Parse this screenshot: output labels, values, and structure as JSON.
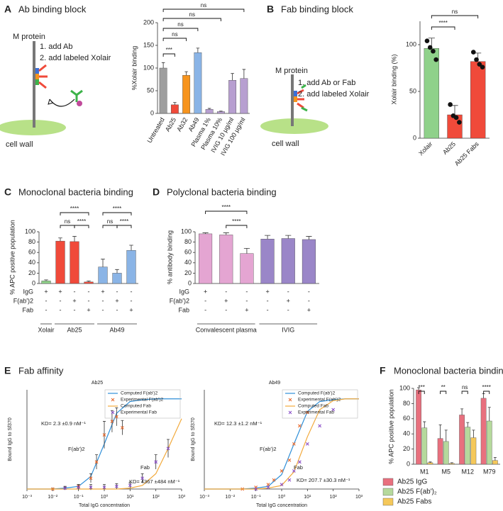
{
  "chart_data": [
    {
      "type": "bar",
      "panel": "A",
      "title": "Ab binding block",
      "ylabel": "%Xolair binding",
      "annotations": [
        "M protein",
        "1. add Ab",
        "2. add labeled Xolair",
        "cell wall"
      ],
      "categories": [
        "Untreated",
        "Ab25",
        "Ab32",
        "Ab49",
        "Plasma 1%",
        "Plasma 10%",
        "IVIG 10 µg/ml",
        "IVIG 100 µg/ml"
      ],
      "values": [
        100,
        19,
        84,
        134,
        9,
        4,
        73,
        77
      ],
      "errors": [
        12,
        5,
        8,
        10,
        2,
        1,
        15,
        20
      ],
      "colors": [
        "#9e9e9e",
        "#f04a3a",
        "#f7941d",
        "#8ab4e6",
        "#b79fd0",
        "#b79fd0",
        "#b79fd0",
        "#b79fd0"
      ],
      "ylim": [
        0,
        200
      ],
      "yticks": [
        0,
        50,
        100,
        150,
        200
      ],
      "significance": [
        "***",
        "ns",
        "ns",
        "ns",
        "ns"
      ]
    },
    {
      "type": "bar",
      "panel": "B",
      "title": "Fab binding block",
      "ylabel": "Xolair binding (%)",
      "annotations": [
        "M protein",
        "1. add Ab or Fab",
        "2. add labeled Xolair",
        "cell wall"
      ],
      "categories": [
        "Xolair",
        "Ab25",
        "Ab25 Fabs"
      ],
      "values": [
        96,
        25,
        82
      ],
      "errors": [
        11,
        10,
        9
      ],
      "points": [
        [
          104,
          97,
          93,
          84
        ],
        [
          36,
          24,
          22,
          17
        ],
        [
          92,
          84,
          79,
          76
        ]
      ],
      "colors": [
        "#8fd18a",
        "#f04a3a",
        "#f04a3a"
      ],
      "ylim": [
        0,
        125
      ],
      "yticks": [
        0,
        50,
        100
      ],
      "significance": [
        "****",
        "ns"
      ]
    },
    {
      "type": "bar",
      "panel": "C",
      "title": "Monoclonal bacteria binding",
      "ylabel": "% APC positive population",
      "values": [
        5,
        82,
        81,
        3,
        32,
        20,
        64
      ],
      "errors": [
        2,
        6,
        10,
        2,
        15,
        7,
        10
      ],
      "colors": [
        "#8fd18a",
        "#f04a3a",
        "#f04a3a",
        "#f04a3a",
        "#8ab4e6",
        "#8ab4e6",
        "#8ab4e6"
      ],
      "ylim": [
        0,
        100
      ],
      "yticks": [
        0,
        20,
        40,
        60,
        80,
        100
      ],
      "row_labels": [
        "IgG",
        "F(ab')2",
        "Fab"
      ],
      "signs": [
        [
          "+",
          "+",
          "-",
          "-",
          "+",
          "-",
          "-"
        ],
        [
          "-",
          "-",
          "+",
          "-",
          "-",
          "+",
          "-"
        ],
        [
          "-",
          "-",
          "-",
          "+",
          "-",
          "-",
          "+"
        ]
      ],
      "groups": [
        "Xolair",
        "Ab25",
        "Ab49"
      ],
      "significance": [
        "****",
        "ns",
        "****",
        "****",
        "ns",
        "****"
      ]
    },
    {
      "type": "bar",
      "panel": "D",
      "title": "Polyclonal bacteria binding",
      "ylabel": "% antibody binding",
      "values": [
        96,
        94,
        58,
        86,
        87,
        85
      ],
      "errors": [
        2,
        4,
        10,
        7,
        6,
        6
      ],
      "colors": [
        "#e4a5d2",
        "#e4a5d2",
        "#e4a5d2",
        "#9a86c8",
        "#9a86c8",
        "#9a86c8"
      ],
      "ylim": [
        0,
        100
      ],
      "yticks": [
        0,
        20,
        40,
        60,
        80,
        100
      ],
      "row_labels": [
        "IgG",
        "F(ab')2",
        "Fab"
      ],
      "signs": [
        [
          "+",
          "-",
          "-",
          "+",
          "-",
          "-"
        ],
        [
          "-",
          "+",
          "-",
          "-",
          "+",
          "-"
        ],
        [
          "-",
          "-",
          "+",
          "-",
          "-",
          "+"
        ]
      ],
      "groups": [
        "Convalescent plasma",
        "IVIG"
      ],
      "significance": [
        "****",
        "****"
      ]
    },
    {
      "type": "line",
      "panel": "E",
      "title": "Fab affinity",
      "subtitle": "Ab25",
      "xlabel": "Total IgG concentration",
      "ylabel": "Bound IgG to Sf370",
      "xscale": "log",
      "xlim": [
        0.001,
        1000
      ],
      "xticks": [
        {
          "value": 0.001,
          "label": "10⁻³"
        },
        {
          "value": 0.01,
          "label": "10⁻²"
        },
        {
          "value": 0.1,
          "label": "10⁻¹"
        },
        {
          "value": 1,
          "label": "10⁰"
        },
        {
          "value": 10,
          "label": "10¹"
        },
        {
          "value": 100,
          "label": "10²"
        },
        {
          "value": 1000,
          "label": "10³"
        }
      ],
      "ylim": [
        0,
        1.1
      ],
      "annotations": [
        "KD= 2.3 ±0.9 nM⁻¹",
        "F(ab')2",
        "Fab",
        "KD= 4367 ±484 nM⁻¹"
      ],
      "series": [
        {
          "name": "Computed F(ab')2",
          "color": "#2f8fd8",
          "style": "line",
          "x": [
            0.001,
            0.003,
            0.01,
            0.03,
            0.1,
            0.3,
            1,
            3,
            10,
            30,
            100,
            300,
            1000
          ],
          "values": [
            0,
            0,
            0,
            0.01,
            0.03,
            0.14,
            0.5,
            0.84,
            0.97,
            0.99,
            1,
            1,
            1
          ]
        },
        {
          "name": "Experimental F(ab')2",
          "color": "#e8682a",
          "style": "points",
          "x": [
            0.01,
            0.03,
            0.1,
            0.3,
            0.5,
            1,
            2,
            3,
            5
          ],
          "values": [
            0,
            0.01,
            0.03,
            0.12,
            0.3,
            0.6,
            0.75,
            0.8,
            0.68
          ],
          "errors": [
            0.01,
            0.01,
            0.02,
            0.05,
            0.08,
            0.15,
            0.12,
            0.1,
            0.08
          ]
        },
        {
          "name": "Computed Fab",
          "color": "#f2a93b",
          "style": "line",
          "x": [
            0.001,
            0.003,
            0.01,
            0.03,
            0.1,
            0.3,
            1,
            3,
            10,
            30,
            100,
            300,
            1000
          ],
          "values": [
            0,
            0,
            0,
            0,
            0,
            0,
            0,
            0,
            0.01,
            0.04,
            0.17,
            0.45,
            0.78
          ]
        },
        {
          "name": "Experimental Fab",
          "color": "#8a4fc8",
          "style": "points",
          "x": [
            0.03,
            0.1,
            0.3,
            1,
            3,
            10,
            30,
            100,
            300
          ],
          "values": [
            0.01,
            0.02,
            0.02,
            0.02,
            0.03,
            0.04,
            0.12,
            0.3,
            0.45
          ],
          "errors": [
            0.02,
            0.03,
            0.03,
            0.03,
            0.03,
            0.03,
            0.05,
            0.08,
            0.1
          ]
        }
      ]
    },
    {
      "type": "line",
      "subtitle": "Ab49",
      "xlabel": "Total IgG concentration",
      "ylabel": "Bound IgG to Sf370",
      "xscale": "log",
      "xlim": [
        0.001,
        1000
      ],
      "xticks": [
        {
          "value": 0.001,
          "label": "10⁻³"
        },
        {
          "value": 0.01,
          "label": "10⁻²"
        },
        {
          "value": 0.1,
          "label": "10⁻¹"
        },
        {
          "value": 1,
          "label": "10⁰"
        },
        {
          "value": 10,
          "label": "10¹"
        },
        {
          "value": 100,
          "label": "10²"
        },
        {
          "value": 1000,
          "label": "10³"
        }
      ],
      "ylim": [
        0,
        1.1
      ],
      "annotations": [
        "KD= 12.3 ±1.2 nM⁻¹",
        "F(ab')2",
        "Fab",
        "KD= 207.7 ±30.3 nM⁻¹"
      ],
      "series": [
        {
          "name": "Computed F(ab')2",
          "color": "#2f8fd8",
          "style": "line",
          "x": [
            0.001,
            0.003,
            0.01,
            0.03,
            0.1,
            0.3,
            1,
            3,
            10,
            30,
            100,
            300,
            1000
          ],
          "values": [
            0,
            0,
            0,
            0,
            0.01,
            0.03,
            0.16,
            0.5,
            0.86,
            0.97,
            0.99,
            1,
            1
          ]
        },
        {
          "name": "Experimental F(ab')2",
          "color": "#e8682a",
          "style": "points",
          "x": [
            0.03,
            0.1,
            0.3,
            0.5,
            1,
            2,
            3,
            5,
            10
          ],
          "values": [
            0,
            0.02,
            0.05,
            0.1,
            0.2,
            0.32,
            0.5,
            0.7,
            0.85
          ]
        },
        {
          "name": "Computed Fab",
          "color": "#f2a93b",
          "style": "line",
          "x": [
            0.001,
            0.003,
            0.01,
            0.03,
            0.1,
            0.3,
            1,
            3,
            10,
            30,
            100,
            300,
            1000
          ],
          "values": [
            0,
            0,
            0,
            0,
            0,
            0.01,
            0.04,
            0.19,
            0.58,
            0.88,
            0.98,
            1,
            1
          ]
        },
        {
          "name": "Experimental Fab",
          "color": "#8a4fc8",
          "style": "points",
          "x": [
            0.1,
            0.3,
            1,
            2,
            3,
            5,
            10,
            30,
            100
          ],
          "values": [
            0,
            0.02,
            0.05,
            0.1,
            0.2,
            0.3,
            0.5,
            0.7,
            0.88
          ]
        }
      ]
    },
    {
      "type": "grouped_bar",
      "panel": "F",
      "title": "Monoclonal bacteria binding",
      "ylabel": "% APC positive population",
      "categories": [
        "M1",
        "M5",
        "M12",
        "M79"
      ],
      "series": [
        {
          "name": "Ab25 IgG",
          "color": "#e8707e",
          "values": [
            98,
            34,
            65,
            87
          ],
          "errors": [
            3,
            18,
            8,
            6
          ]
        },
        {
          "name": "Ab25 F(ab')₂",
          "color": "#b5d99c",
          "values": [
            48,
            30,
            49,
            57
          ],
          "errors": [
            8,
            15,
            6,
            18
          ]
        },
        {
          "name": "Ab25 Fabs",
          "color": "#f5c85a",
          "values": [
            2,
            1,
            35,
            5
          ],
          "errors": [
            1,
            1,
            10,
            4
          ]
        }
      ],
      "ylim": [
        0,
        100
      ],
      "yticks": [
        0,
        20,
        40,
        60,
        80,
        100
      ],
      "significance": [
        "***",
        "**",
        "ns",
        "****"
      ]
    }
  ]
}
